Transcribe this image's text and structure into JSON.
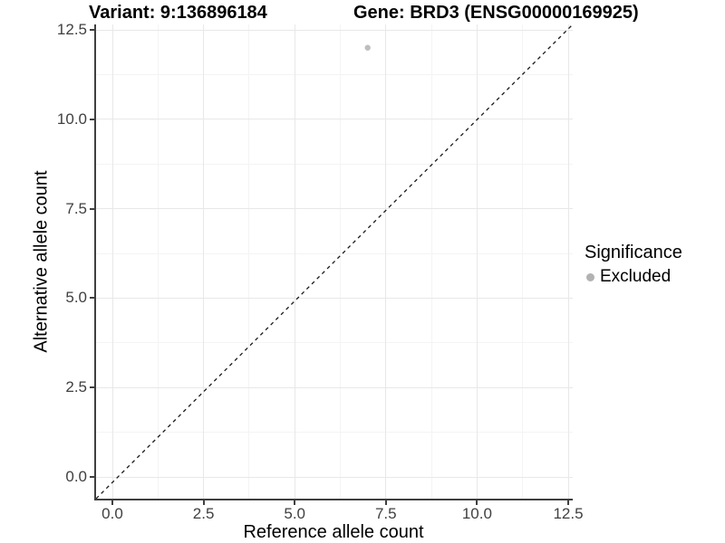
{
  "titles": {
    "variant": "Variant: 9:136896184",
    "gene": "Gene: BRD3 (ENSG00000169925)"
  },
  "axes": {
    "x": {
      "label": "Reference allele count",
      "tick_values": [
        0,
        2.5,
        5,
        7.5,
        10,
        12.5
      ],
      "tick_labels": [
        "0.0",
        "2.5",
        "5.0",
        "7.5",
        "10.0",
        "12.5"
      ],
      "minor_tick_values": [
        1.25,
        3.75,
        6.25,
        8.75,
        11.25
      ]
    },
    "y": {
      "label": "Alternative allele count",
      "tick_values": [
        0,
        2.5,
        5,
        7.5,
        10,
        12.5
      ],
      "tick_labels": [
        "0.0",
        "2.5",
        "5.0",
        "7.5",
        "10.0",
        "12.5"
      ],
      "minor_tick_values": [
        1.25,
        3.75,
        6.25,
        8.75,
        11.25
      ]
    }
  },
  "legend": {
    "title": "Significance",
    "items": [
      {
        "label": "Excluded",
        "color": "#b2b2b2"
      }
    ]
  },
  "colors": {
    "point_excluded": "#bebebe",
    "axis_line": "#3f3f3f",
    "grid_major": "#e8e8e8",
    "grid_minor": "#f4f4f4",
    "reference_line": "#1a1a1a",
    "tick_label": "#404040"
  },
  "chart_data": {
    "type": "scatter",
    "title": "Variant: 9:136896184   Gene: BRD3 (ENSG00000169925)",
    "xlabel": "Reference allele count",
    "ylabel": "Alternative allele count",
    "xlim": [
      -0.45,
      13.0
    ],
    "ylim": [
      -0.65,
      12.65
    ],
    "xticks": [
      0,
      2.5,
      5,
      7.5,
      10,
      12.5
    ],
    "yticks": [
      0,
      2.5,
      5,
      7.5,
      10,
      12.5
    ],
    "grid": "major+minor",
    "legend_position": "right",
    "series": [
      {
        "name": "Excluded",
        "color": "#bebebe",
        "points": [
          {
            "x": 7,
            "y": 12
          }
        ]
      }
    ],
    "reference_line": {
      "type": "identity y=x",
      "style": "dashed",
      "color": "black",
      "span": "panel corner to corner"
    }
  }
}
